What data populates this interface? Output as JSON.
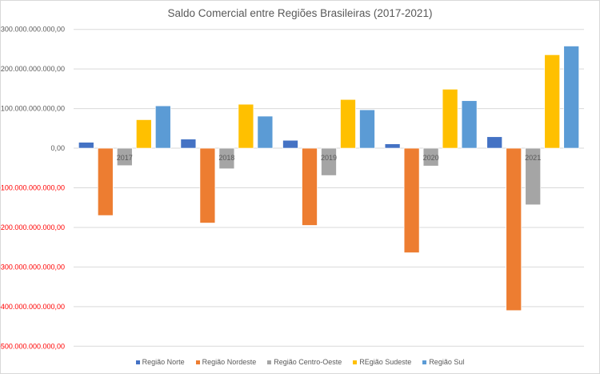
{
  "chart_data": {
    "type": "bar",
    "title": "Saldo Comercial entre Regiões Brasileiras (2017-2021)",
    "xlabel": "",
    "ylabel": "",
    "categories": [
      "2017",
      "2018",
      "2019",
      "2020",
      "2021"
    ],
    "ylim": [
      -500000000000,
      300000000000
    ],
    "yticks": [
      300000000000,
      200000000000,
      100000000000,
      0,
      -100000000000,
      -200000000000,
      -300000000000,
      -400000000000,
      -500000000000
    ],
    "ytick_labels": [
      "300.000.000.000,00",
      "200.000.000.000,00",
      "100.000.000.000,00",
      "0,00",
      "-100.000.000.000,00",
      "-200.000.000.000,00",
      "-300.000.000.000,00",
      "-400.000.000.000,00",
      "-500.000.000.000,00"
    ],
    "negative_tick_color": "#ff0000",
    "grid": true,
    "legend_position": "bottom",
    "series": [
      {
        "name": "Região Norte",
        "color": "#4472c4",
        "values": [
          15000000000,
          23000000000,
          20000000000,
          11000000000,
          29000000000
        ]
      },
      {
        "name": "Região Nordeste",
        "color": "#ed7d31",
        "values": [
          -170000000000,
          -189000000000,
          -195000000000,
          -264000000000,
          -410000000000
        ]
      },
      {
        "name": "Região Centro-Oeste",
        "color": "#a5a5a5",
        "values": [
          -44000000000,
          -52000000000,
          -69000000000,
          -45000000000,
          -143000000000
        ]
      },
      {
        "name": "REgião Sudeste",
        "color": "#ffc000",
        "values": [
          72000000000,
          111000000000,
          123000000000,
          149000000000,
          236000000000
        ]
      },
      {
        "name": "Região Sul",
        "color": "#5b9bd5",
        "values": [
          107000000000,
          81000000000,
          97000000000,
          120000000000,
          258000000000
        ]
      }
    ]
  }
}
